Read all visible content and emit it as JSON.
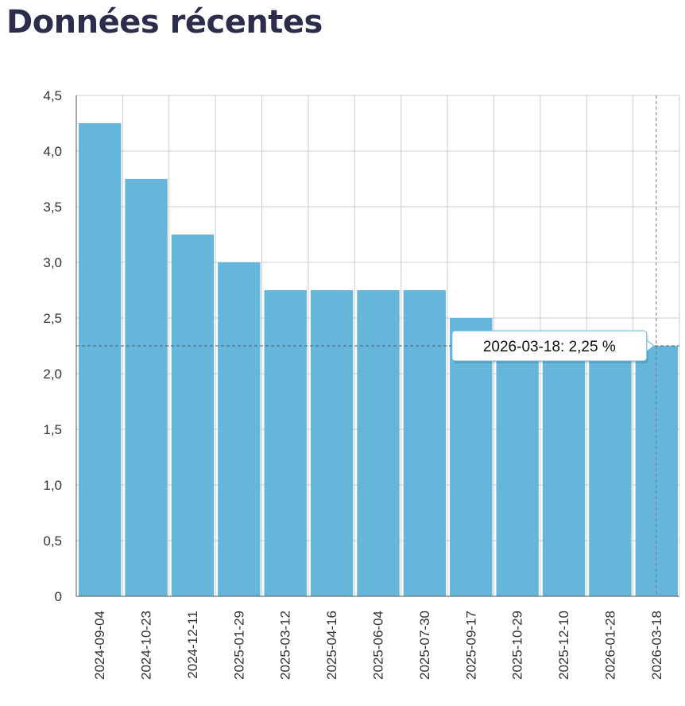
{
  "page": {
    "title": "Données récentes"
  },
  "chart_data": {
    "type": "bar",
    "title": "",
    "xlabel": "",
    "ylabel": "",
    "categories": [
      "2024-09-04",
      "2024-10-23",
      "2024-12-11",
      "2025-01-29",
      "2025-03-12",
      "2025-04-16",
      "2025-06-04",
      "2025-07-30",
      "2025-09-17",
      "2025-10-29",
      "2025-12-10",
      "2026-01-28",
      "2026-03-18"
    ],
    "values": [
      4.25,
      3.75,
      3.25,
      3.0,
      2.75,
      2.75,
      2.75,
      2.75,
      2.5,
      2.25,
      2.25,
      2.25,
      2.25
    ],
    "ylim": [
      0,
      4.5
    ],
    "yticks": [
      0,
      0.5,
      1.0,
      1.5,
      2.0,
      2.5,
      3.0,
      3.5,
      4.0,
      4.5
    ],
    "ytick_labels": [
      "0",
      "0,5",
      "1,0",
      "1,5",
      "2,0",
      "2,5",
      "3,0",
      "3,5",
      "4,0",
      "4,5"
    ],
    "grid": true,
    "bar_color": "#66b5db",
    "tooltip": {
      "category": "2026-03-18",
      "text": "2026-03-18: 2,25 %"
    }
  }
}
